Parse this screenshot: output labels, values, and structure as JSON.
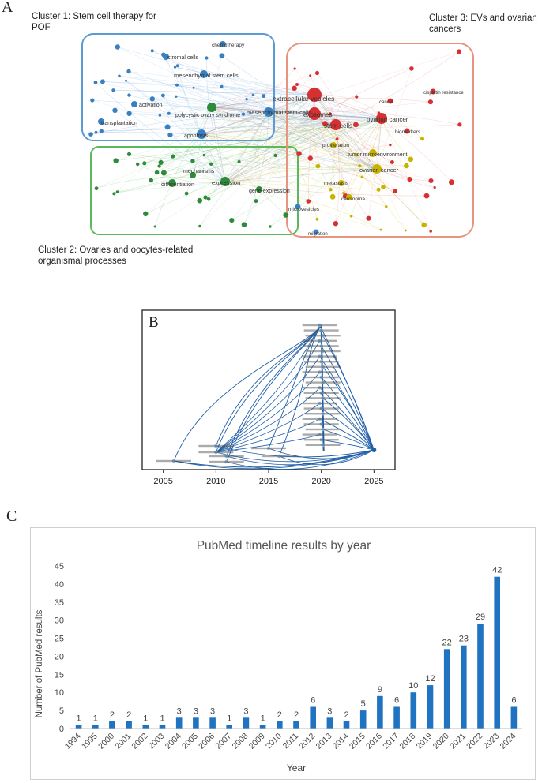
{
  "panel_a": {
    "letter": "A",
    "clusters": [
      {
        "lines": [
          "Cluster 1: Stem cell therapy for",
          "POF"
        ],
        "color": "#5b9bd5"
      },
      {
        "lines": [
          "Cluster 2:  Ovaries and oocytes-related",
          "organismal processes"
        ],
        "color": "#5cb85c"
      },
      {
        "lines": [
          "Cluster 3: EVs and ovarian",
          "cancers"
        ],
        "color": "#e8957f"
      }
    ],
    "nodes": [
      {
        "label": "extracellular vesicles",
        "color": "#d63031"
      },
      {
        "label": "exosomes",
        "color": "#d63031"
      },
      {
        "label": "stem-cells",
        "color": "#d63031"
      },
      {
        "label": "ovarian cancer",
        "color": "#d63031"
      },
      {
        "label": "ovarian cancer",
        "color": "#c8b400"
      },
      {
        "label": "tumor microenvironment",
        "color": "#c8b400"
      },
      {
        "label": "mesenchymal stem-cells",
        "color": "#3a7fc1"
      },
      {
        "label": "mesenchymal stem cells",
        "color": "#3a7fc1"
      },
      {
        "label": "apoptosis",
        "color": "#3a7fc1"
      },
      {
        "label": "polycystic ovary syndrome",
        "color": "#2e8b3a"
      },
      {
        "label": "expression",
        "color": "#2e8b3a"
      },
      {
        "label": "differentiation",
        "color": "#2e8b3a"
      },
      {
        "label": "mechanisms",
        "color": "#2e8b3a"
      },
      {
        "label": "gene-expression",
        "color": "#2e8b3a"
      },
      {
        "label": "transplantation",
        "color": "#3a7fc1"
      },
      {
        "label": "activation",
        "color": "#3a7fc1"
      },
      {
        "label": "stromal cells",
        "color": "#3a7fc1"
      },
      {
        "label": "proliferation",
        "color": "#c8b400"
      },
      {
        "label": "metastasis",
        "color": "#c8b400"
      },
      {
        "label": "carcinoma",
        "color": "#c8b400"
      },
      {
        "label": "chemotherapy",
        "color": "#3a7fc1"
      },
      {
        "label": "microvesicles",
        "color": "#3a7fc1"
      },
      {
        "label": "migration",
        "color": "#3a7fc1"
      },
      {
        "label": "biomarkers",
        "color": "#d63031"
      },
      {
        "label": "cisplatin resistance",
        "color": "#d63031"
      },
      {
        "label": "cancer",
        "color": "#d63031"
      }
    ]
  },
  "panel_b": {
    "letter": "B",
    "x_ticks": [
      "2005",
      "2010",
      "2015",
      "2020",
      "2025"
    ]
  },
  "panel_c": {
    "letter": "C"
  },
  "chart_data": [
    {
      "type": "network",
      "title": "",
      "nodes": [
        "extracellular vesicles",
        "exosomes",
        "stem-cells",
        "ovarian cancer",
        "mesenchymal stem-cells",
        "apoptosis",
        "expression",
        "polycystic ovary syndrome"
      ]
    },
    {
      "type": "network-timeline",
      "xlabel": "",
      "xlim": [
        2003,
        2027
      ],
      "x_ticks": [
        2005,
        2010,
        2015,
        2020,
        2025
      ]
    },
    {
      "type": "bar",
      "title": "PubMed timeline results by year",
      "xlabel": "Year",
      "ylabel": "Number of PubMed  results",
      "ylim": [
        0,
        45
      ],
      "yticks": [
        0,
        5,
        10,
        15,
        20,
        25,
        30,
        35,
        40,
        45
      ],
      "categories": [
        "1994",
        "1995",
        "2000",
        "2001",
        "2002",
        "2003",
        "2004",
        "2005",
        "2006",
        "2007",
        "2008",
        "2009",
        "2010",
        "2011",
        "2012",
        "2013",
        "2014",
        "2015",
        "2016",
        "2017",
        "2018",
        "2019",
        "2020",
        "2021",
        "2022",
        "2023",
        "2024"
      ],
      "values": [
        1,
        1,
        2,
        2,
        1,
        1,
        3,
        3,
        3,
        1,
        3,
        1,
        2,
        2,
        6,
        3,
        2,
        5,
        9,
        6,
        10,
        12,
        22,
        23,
        29,
        42,
        6
      ],
      "bar_color": "#1f73c1",
      "grid": false
    }
  ]
}
